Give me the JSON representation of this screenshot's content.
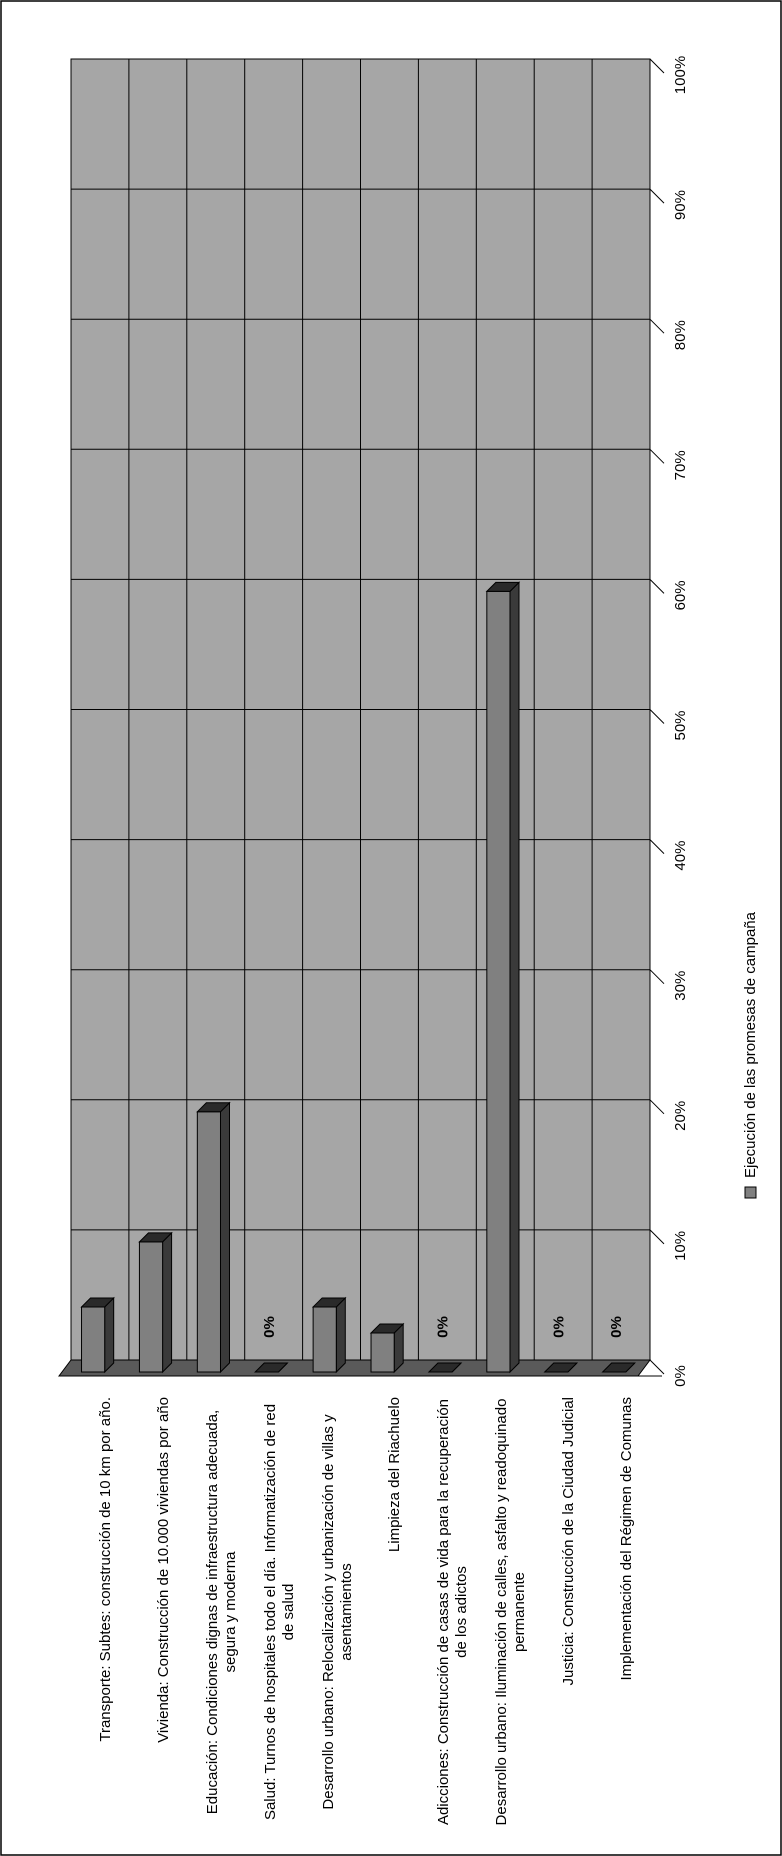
{
  "chart_data": {
    "type": "bar",
    "categories": [
      "Transporte: Subtes:  construcción de 10 km por año.",
      "Vivienda: Construcción de 10.000 viviendas por año",
      "Educación: Condiciones dignas de infraestructura adecuada, segura y moderna",
      "Salud: Turnos de hospitales todo el día. Informatización de red de salud",
      "Desarrollo urbano: Relocalización y urbanización de villas y asentamientos",
      "Limpieza del Riachuelo",
      "Adicciones: Construcción de casas de vida para la recuperación de los adictos",
      "Desarrollo urbano: Iluminación de calles, asfalto y readoquinado permanente",
      "Justicia: Construcción de la Ciudad Judicial",
      "Implementación del Régimen de Comunas"
    ],
    "series": [
      {
        "name": "Ejecución de las promesas de campaña",
        "color": "#808080",
        "values": [
          5,
          10,
          20,
          0,
          5,
          3,
          0,
          60,
          0,
          0
        ],
        "value_labels": [
          null,
          null,
          null,
          "0%",
          null,
          null,
          "0%",
          null,
          "0%",
          "0%"
        ]
      }
    ],
    "ylim": [
      0,
      100
    ],
    "yticks": [
      {
        "value": 0,
        "label": "0%"
      },
      {
        "value": 10,
        "label": "10%"
      },
      {
        "value": 20,
        "label": "20%"
      },
      {
        "value": 30,
        "label": "30%"
      },
      {
        "value": 40,
        "label": "40%"
      },
      {
        "value": 50,
        "label": "50%"
      },
      {
        "value": 60,
        "label": "60%"
      },
      {
        "value": 70,
        "label": "70%"
      },
      {
        "value": 80,
        "label": "80%"
      },
      {
        "value": 90,
        "label": "90%"
      },
      {
        "value": 100,
        "label": "100%"
      }
    ],
    "grid": true
  }
}
